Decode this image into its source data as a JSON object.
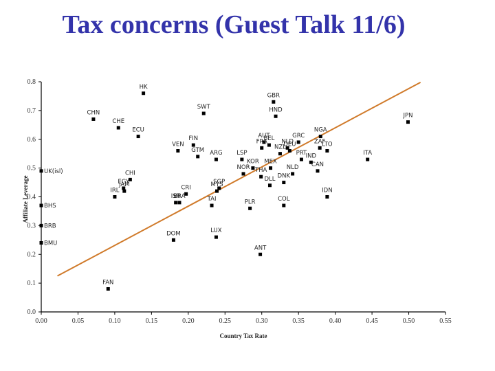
{
  "slide": {
    "title": "Tax concerns (Guest Talk 11/6)",
    "title_color": "#3333aa"
  },
  "chart_data": {
    "type": "scatter",
    "title": "",
    "xlabel": "Country Tax Rate",
    "ylabel": "Affiliate Leverage",
    "xlim": [
      0.0,
      0.55
    ],
    "ylim": [
      0.0,
      0.8
    ],
    "x_ticks": [
      "0.00",
      "0.05",
      "0.10",
      "0.15",
      "0.20",
      "0.25",
      "0.30",
      "0.35",
      "0.40",
      "0.45",
      "0.50",
      "0.55"
    ],
    "y_ticks": [
      "0.0",
      "0.1",
      "0.2",
      "0.3",
      "0.4",
      "0.5",
      "0.6",
      "0.7",
      "0.8"
    ],
    "grid": false,
    "legend": null,
    "trendline": {
      "color": "#d07a2a",
      "x": [
        0.022,
        0.516
      ],
      "y": [
        0.125,
        0.798
      ]
    },
    "points": [
      {
        "label": "HK",
        "x": 0.139,
        "y": 0.76
      },
      {
        "label": "CHN",
        "x": 0.071,
        "y": 0.67
      },
      {
        "label": "CHE",
        "x": 0.105,
        "y": 0.64
      },
      {
        "label": "ECU",
        "x": 0.132,
        "y": 0.61
      },
      {
        "label": "SWT",
        "x": 0.221,
        "y": 0.69
      },
      {
        "label": "GBR",
        "x": 0.316,
        "y": 0.73
      },
      {
        "label": "HND",
        "x": 0.319,
        "y": 0.68
      },
      {
        "label": "FIN",
        "x": 0.207,
        "y": 0.58
      },
      {
        "label": "VEN",
        "x": 0.186,
        "y": 0.56
      },
      {
        "label": "GTM",
        "x": 0.213,
        "y": 0.54
      },
      {
        "label": "ARG",
        "x": 0.238,
        "y": 0.53
      },
      {
        "label": "LSP",
        "x": 0.273,
        "y": 0.53
      },
      {
        "label": "AUT",
        "x": 0.303,
        "y": 0.59
      },
      {
        "label": "FRA",
        "x": 0.3,
        "y": 0.57
      },
      {
        "label": "BEL",
        "x": 0.31,
        "y": 0.58
      },
      {
        "label": "NZL",
        "x": 0.325,
        "y": 0.55
      },
      {
        "label": "DEU",
        "x": 0.338,
        "y": 0.56
      },
      {
        "label": "NLD",
        "x": 0.335,
        "y": 0.57
      },
      {
        "label": "GRC",
        "x": 0.35,
        "y": 0.59
      },
      {
        "label": "NGA",
        "x": 0.38,
        "y": 0.61
      },
      {
        "label": "ZAF",
        "x": 0.379,
        "y": 0.57
      },
      {
        "label": "LTO",
        "x": 0.389,
        "y": 0.56
      },
      {
        "label": "PRT",
        "x": 0.354,
        "y": 0.53
      },
      {
        "label": "IND",
        "x": 0.367,
        "y": 0.52
      },
      {
        "label": "CAN",
        "x": 0.376,
        "y": 0.49
      },
      {
        "label": "ITA",
        "x": 0.444,
        "y": 0.53
      },
      {
        "label": "JPN",
        "x": 0.499,
        "y": 0.66
      },
      {
        "label": "IDN",
        "x": 0.389,
        "y": 0.4
      },
      {
        "label": "KOR",
        "x": 0.288,
        "y": 0.5
      },
      {
        "label": "MEX",
        "x": 0.312,
        "y": 0.5
      },
      {
        "label": "NOR",
        "x": 0.275,
        "y": 0.48
      },
      {
        "label": "THA",
        "x": 0.299,
        "y": 0.47
      },
      {
        "label": "NLD2",
        "x": 0.342,
        "y": 0.48
      },
      {
        "label": "DNK",
        "x": 0.33,
        "y": 0.45
      },
      {
        "label": "DLL",
        "x": 0.311,
        "y": 0.44
      },
      {
        "label": "SGP",
        "x": 0.242,
        "y": 0.43
      },
      {
        "label": "MYS",
        "x": 0.239,
        "y": 0.42
      },
      {
        "label": "TAI",
        "x": 0.232,
        "y": 0.37
      },
      {
        "label": "PLR",
        "x": 0.284,
        "y": 0.36
      },
      {
        "label": "COL",
        "x": 0.33,
        "y": 0.37
      },
      {
        "label": "CRI",
        "x": 0.197,
        "y": 0.41
      },
      {
        "label": "ISR",
        "x": 0.183,
        "y": 0.38
      },
      {
        "label": "BRA",
        "x": 0.188,
        "y": 0.38
      },
      {
        "label": "DOM",
        "x": 0.18,
        "y": 0.25
      },
      {
        "label": "LUX",
        "x": 0.238,
        "y": 0.26
      },
      {
        "label": "ANT",
        "x": 0.298,
        "y": 0.2
      },
      {
        "label": "CHI",
        "x": 0.121,
        "y": 0.46
      },
      {
        "label": "EGY",
        "x": 0.112,
        "y": 0.43
      },
      {
        "label": "JAM",
        "x": 0.113,
        "y": 0.42
      },
      {
        "label": "IRL",
        "x": 0.1,
        "y": 0.4
      },
      {
        "label": "FAN",
        "x": 0.091,
        "y": 0.08
      },
      {
        "label": "UK(isl)",
        "x": 0.0,
        "y": 0.49
      },
      {
        "label": "BHS",
        "x": 0.0,
        "y": 0.37
      },
      {
        "label": "BRB",
        "x": 0.0,
        "y": 0.3
      },
      {
        "label": "BMU",
        "x": 0.0,
        "y": 0.24
      }
    ]
  },
  "labels": {
    "xlabel": "Country Tax Rate",
    "ylabel": "Affiliate Leverage"
  }
}
